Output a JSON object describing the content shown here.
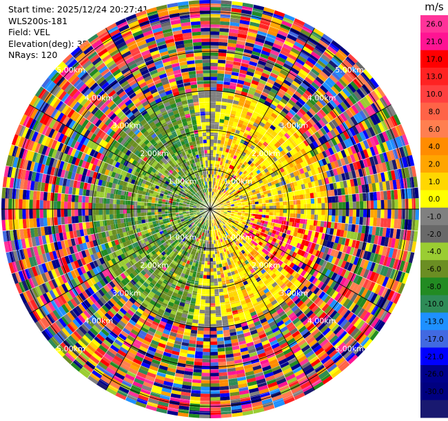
{
  "header": {
    "start_time": "Start time: 2025/12/24 20:27:41",
    "instrument": "WLS200s-181",
    "field": "Field: VEL",
    "elevation": "Elevation(deg): 35.00",
    "nrays": "NRays: 120"
  },
  "chart_data": {
    "type": "heatmap",
    "subtype": "polar PPI",
    "field": "VEL",
    "n_rays": 120,
    "range_rings_km": [
      1.0,
      2.0,
      3.0,
      4.0,
      5.0
    ],
    "range_ring_labels": [
      "1.00km",
      "2.00km",
      "3.00km",
      "4.00km",
      "5.00km"
    ],
    "colorbar": {
      "unit": "m/s",
      "ticks": [
        "26.0",
        "21.0",
        "17.0",
        "13.0",
        "10.0",
        "8.0",
        "6.0",
        "4.0",
        "2.0",
        "1.0",
        "0.0",
        "-1.0",
        "-2.0",
        "-4.0",
        "-6.0",
        "-8.0",
        "-10.0",
        "-13.0",
        "-17.0",
        "-21.0",
        "-26.0",
        "-30.0"
      ],
      "colors": [
        "#ff3399",
        "#ff1493",
        "#ff0000",
        "#ff2222",
        "#ff4040",
        "#ff6347",
        "#ff7f50",
        "#ff8c00",
        "#ffa500",
        "#ffd700",
        "#ffff00",
        "#808080",
        "#696969",
        "#9acd32",
        "#6b8e23",
        "#228b22",
        "#2e8b57",
        "#1e90ff",
        "#4169e1",
        "#0000ff",
        "#00008b",
        "#000080",
        "#191970"
      ]
    },
    "pattern": {
      "near_field_positive_azimuth_deg": [
        10,
        170
      ],
      "near_field_negative_azimuth_deg": [
        190,
        350
      ],
      "near_field_radius_km": 3.0,
      "noise_beyond_km": 3.0
    }
  }
}
